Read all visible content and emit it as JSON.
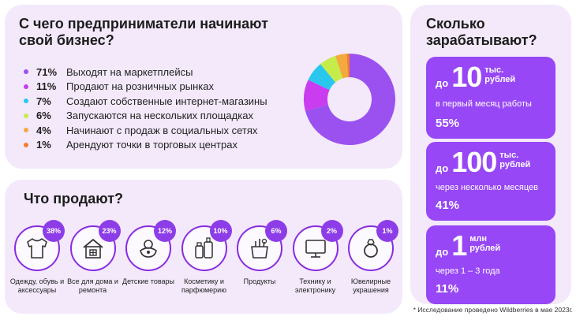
{
  "start": {
    "title": "С чего предприниматели начинают свой бизнес?"
  },
  "sell": {
    "title": "Что продают?"
  },
  "earn": {
    "title": "Сколько зарабатывают?",
    "tiers": [
      {
        "prefix": "до",
        "amount": "10",
        "unit_top": "тыс.",
        "unit_bottom": "рублей",
        "period": "в первый месяц работы",
        "pct": "55%"
      },
      {
        "prefix": "до",
        "amount": "100",
        "unit_top": "тыс.",
        "unit_bottom": "рублей",
        "period": "через несколько месяцев",
        "pct": "41%"
      },
      {
        "prefix": "до",
        "amount": "1",
        "unit_top": "млн",
        "unit_bottom": "рублей",
        "period": "через 1 – 3 года",
        "pct": "11%"
      }
    ]
  },
  "footnote": "* Исследование проведено Wildberries в мае 2023г.",
  "colors": {
    "marketplaces": "#9b51f0",
    "retail": "#c93cf0",
    "online_store": "#29c7ee",
    "multi": "#c6ec4a",
    "social": "#f4a93e",
    "malls": "#f37d2e",
    "accent": "#8d3de8"
  },
  "chart_data": [
    {
      "type": "pie",
      "title": "",
      "categories": [
        "Выходят на маркетплейсы",
        "Продают на розничных рынках",
        "Создают собственные интернет-магазины",
        "Запускаются на нескольких площадках",
        "Начинают с продаж в социальных сетях",
        "Арендуют точки в торговых центрах"
      ],
      "values": [
        71,
        11,
        7,
        6,
        4,
        1
      ],
      "labels": [
        "71%",
        "11%",
        "7%",
        "6%",
        "4%",
        "1%"
      ],
      "legend": "left"
    },
    {
      "type": "table",
      "title": "",
      "categories": [
        "Одежду, обувь и аксессуары",
        "Все для дома и ремонта",
        "Детские товары",
        "Косметику и парфюмерию",
        "Продукты",
        "Технику и электронику",
        "Ювелирные украшения"
      ],
      "values": [
        38,
        23,
        12,
        10,
        6,
        2,
        1
      ],
      "labels": [
        "38%",
        "23%",
        "12%",
        "10%",
        "6%",
        "2%",
        "1%"
      ],
      "icons": [
        "tshirt-icon",
        "house-icon",
        "pacifier-icon",
        "cosmetics-icon",
        "grocery-bag-icon",
        "monitor-icon",
        "ring-icon"
      ]
    }
  ]
}
